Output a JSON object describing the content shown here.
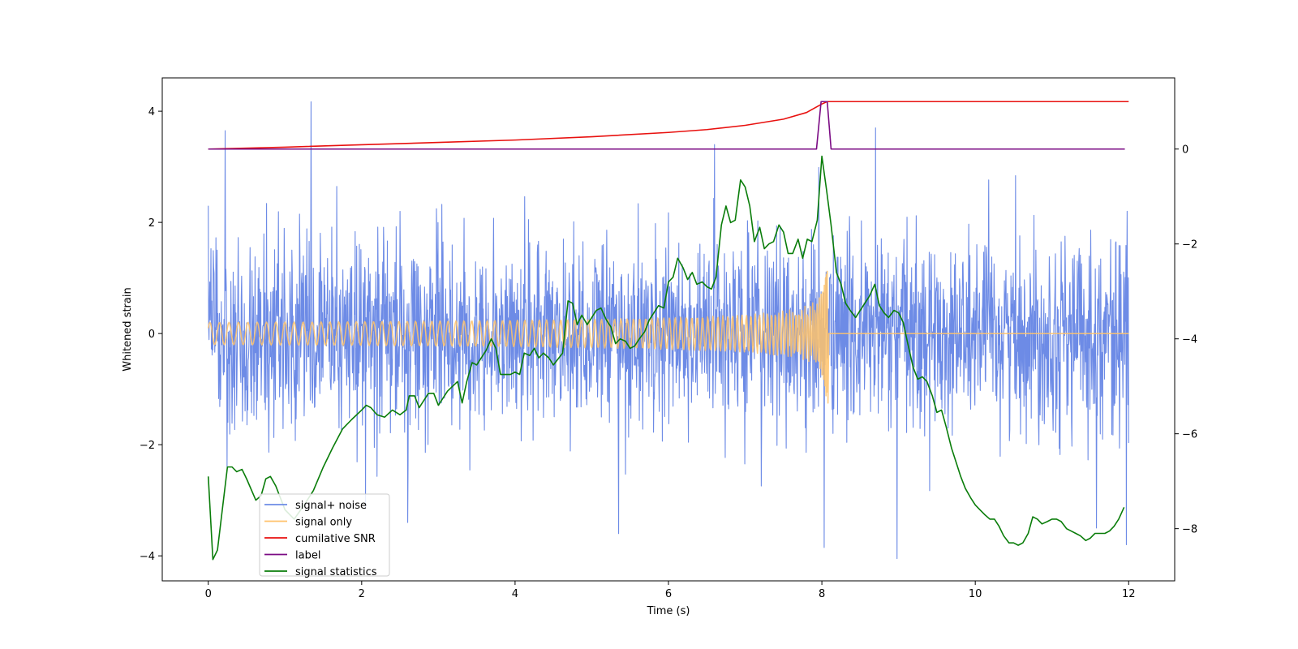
{
  "chart_data": {
    "type": "line",
    "xlabel": "Time (s)",
    "ylabel": "Whitened strain",
    "xlim": [
      -0.6,
      12.6
    ],
    "ylim": [
      -4.45,
      4.6
    ],
    "y2lim": [
      -9.1,
      1.5
    ],
    "grid": false,
    "legend_placement": "lower-left",
    "x_ticks": [
      0,
      2,
      4,
      6,
      8,
      10,
      12
    ],
    "y_ticks": [
      -4,
      -2,
      0,
      2,
      4
    ],
    "y2_ticks": [
      -8,
      -6,
      -4,
      -2,
      0
    ],
    "series": [
      {
        "name": "signal+ noise",
        "axis": "left",
        "color": "#6d8be6",
        "kind": "noise",
        "x_range": [
          0,
          12
        ],
        "std": 0.85,
        "samples": 2400,
        "spikes": [
          [
            0.0,
            2.3
          ],
          [
            0.22,
            3.65
          ],
          [
            1.34,
            4.17
          ],
          [
            2.05,
            -3.15
          ],
          [
            2.6,
            -3.4
          ],
          [
            5.35,
            -3.6
          ],
          [
            6.6,
            3.4
          ],
          [
            8.03,
            -3.85
          ],
          [
            8.7,
            3.7
          ],
          [
            8.98,
            -4.05
          ],
          [
            11.58,
            -3.5
          ],
          [
            11.97,
            -3.8
          ],
          [
            11.98,
            2.2
          ]
        ]
      },
      {
        "name": "signal only",
        "axis": "left",
        "color": "#ffc36b",
        "kind": "chirp",
        "x_range": [
          0,
          12
        ],
        "t_merge": 8.07,
        "peak": 1.12
      },
      {
        "name": "cumilative SNR",
        "axis": "right",
        "color": "#e8110f",
        "points": [
          [
            0,
            0.0
          ],
          [
            1,
            0.04
          ],
          [
            2,
            0.09
          ],
          [
            3,
            0.14
          ],
          [
            4,
            0.19
          ],
          [
            5,
            0.26
          ],
          [
            6,
            0.35
          ],
          [
            6.5,
            0.41
          ],
          [
            7,
            0.5
          ],
          [
            7.5,
            0.63
          ],
          [
            7.8,
            0.77
          ],
          [
            8.0,
            0.95
          ],
          [
            8.07,
            1.0
          ],
          [
            12,
            1.0
          ]
        ]
      },
      {
        "name": "label",
        "axis": "right",
        "color": "#7b0b84",
        "points": [
          [
            0,
            0.0
          ],
          [
            7.93,
            0.0
          ],
          [
            7.99,
            1.0
          ],
          [
            8.07,
            1.0
          ],
          [
            8.12,
            0.0
          ],
          [
            11.95,
            0.0
          ]
        ]
      },
      {
        "name": "signal statistics",
        "axis": "right",
        "color": "#0a7d0a",
        "points": [
          [
            0.0,
            -6.9
          ],
          [
            0.06,
            -8.65
          ],
          [
            0.12,
            -8.45
          ],
          [
            0.25,
            -6.7
          ],
          [
            0.31,
            -6.7
          ],
          [
            0.37,
            -6.8
          ],
          [
            0.44,
            -6.75
          ],
          [
            0.5,
            -6.95
          ],
          [
            0.62,
            -7.4
          ],
          [
            0.69,
            -7.3
          ],
          [
            0.75,
            -6.95
          ],
          [
            0.81,
            -6.9
          ],
          [
            0.88,
            -7.1
          ],
          [
            1.0,
            -7.6
          ],
          [
            1.12,
            -7.8
          ],
          [
            1.25,
            -7.5
          ],
          [
            1.37,
            -7.2
          ],
          [
            1.5,
            -6.7
          ],
          [
            1.62,
            -6.3
          ],
          [
            1.75,
            -5.9
          ],
          [
            1.87,
            -5.7
          ],
          [
            2.0,
            -5.5
          ],
          [
            2.06,
            -5.4
          ],
          [
            2.12,
            -5.45
          ],
          [
            2.2,
            -5.6
          ],
          [
            2.3,
            -5.65
          ],
          [
            2.4,
            -5.5
          ],
          [
            2.5,
            -5.6
          ],
          [
            2.58,
            -5.5
          ],
          [
            2.62,
            -5.2
          ],
          [
            2.69,
            -5.2
          ],
          [
            2.75,
            -5.45
          ],
          [
            2.81,
            -5.3
          ],
          [
            2.87,
            -5.15
          ],
          [
            2.94,
            -5.15
          ],
          [
            3.0,
            -5.4
          ],
          [
            3.12,
            -5.1
          ],
          [
            3.25,
            -4.9
          ],
          [
            3.31,
            -5.35
          ],
          [
            3.37,
            -4.9
          ],
          [
            3.44,
            -4.5
          ],
          [
            3.5,
            -4.55
          ],
          [
            3.62,
            -4.25
          ],
          [
            3.69,
            -4.0
          ],
          [
            3.75,
            -4.2
          ],
          [
            3.81,
            -4.75
          ],
          [
            3.94,
            -4.75
          ],
          [
            4.0,
            -4.7
          ],
          [
            4.06,
            -4.75
          ],
          [
            4.12,
            -4.3
          ],
          [
            4.19,
            -4.35
          ],
          [
            4.25,
            -4.2
          ],
          [
            4.31,
            -4.4
          ],
          [
            4.37,
            -4.3
          ],
          [
            4.44,
            -4.4
          ],
          [
            4.5,
            -4.55
          ],
          [
            4.62,
            -4.3
          ],
          [
            4.69,
            -3.2
          ],
          [
            4.75,
            -3.25
          ],
          [
            4.81,
            -3.7
          ],
          [
            4.87,
            -3.5
          ],
          [
            4.94,
            -3.7
          ],
          [
            5.0,
            -3.55
          ],
          [
            5.06,
            -3.4
          ],
          [
            5.12,
            -3.35
          ],
          [
            5.19,
            -3.6
          ],
          [
            5.25,
            -3.75
          ],
          [
            5.31,
            -4.1
          ],
          [
            5.37,
            -4.0
          ],
          [
            5.44,
            -4.05
          ],
          [
            5.5,
            -4.2
          ],
          [
            5.56,
            -4.15
          ],
          [
            5.62,
            -4.0
          ],
          [
            5.69,
            -3.85
          ],
          [
            5.75,
            -3.6
          ],
          [
            5.81,
            -3.45
          ],
          [
            5.87,
            -3.3
          ],
          [
            5.94,
            -3.35
          ],
          [
            6.0,
            -2.8
          ],
          [
            6.06,
            -2.7
          ],
          [
            6.12,
            -2.3
          ],
          [
            6.19,
            -2.5
          ],
          [
            6.25,
            -2.75
          ],
          [
            6.31,
            -2.6
          ],
          [
            6.37,
            -2.85
          ],
          [
            6.44,
            -2.8
          ],
          [
            6.5,
            -2.9
          ],
          [
            6.56,
            -2.95
          ],
          [
            6.62,
            -2.7
          ],
          [
            6.69,
            -1.6
          ],
          [
            6.75,
            -1.2
          ],
          [
            6.81,
            -1.55
          ],
          [
            6.87,
            -1.5
          ],
          [
            6.94,
            -0.65
          ],
          [
            7.0,
            -0.8
          ],
          [
            7.06,
            -1.2
          ],
          [
            7.12,
            -1.95
          ],
          [
            7.19,
            -1.65
          ],
          [
            7.25,
            -2.1
          ],
          [
            7.31,
            -2.0
          ],
          [
            7.37,
            -1.95
          ],
          [
            7.44,
            -1.6
          ],
          [
            7.5,
            -1.75
          ],
          [
            7.56,
            -2.2
          ],
          [
            7.62,
            -2.2
          ],
          [
            7.69,
            -1.9
          ],
          [
            7.75,
            -2.3
          ],
          [
            7.81,
            -1.9
          ],
          [
            7.87,
            -1.95
          ],
          [
            7.94,
            -1.5
          ],
          [
            8.0,
            -0.15
          ],
          [
            8.06,
            -0.85
          ],
          [
            8.12,
            -1.6
          ],
          [
            8.19,
            -2.6
          ],
          [
            8.25,
            -2.85
          ],
          [
            8.31,
            -3.25
          ],
          [
            8.37,
            -3.4
          ],
          [
            8.44,
            -3.55
          ],
          [
            8.5,
            -3.4
          ],
          [
            8.56,
            -3.25
          ],
          [
            8.62,
            -3.1
          ],
          [
            8.69,
            -2.85
          ],
          [
            8.75,
            -3.3
          ],
          [
            8.81,
            -3.45
          ],
          [
            8.87,
            -3.55
          ],
          [
            8.94,
            -3.4
          ],
          [
            9.0,
            -3.45
          ],
          [
            9.06,
            -3.65
          ],
          [
            9.12,
            -4.1
          ],
          [
            9.19,
            -4.6
          ],
          [
            9.25,
            -4.85
          ],
          [
            9.31,
            -4.8
          ],
          [
            9.37,
            -4.9
          ],
          [
            9.44,
            -5.2
          ],
          [
            9.5,
            -5.55
          ],
          [
            9.56,
            -5.5
          ],
          [
            9.62,
            -5.85
          ],
          [
            9.69,
            -6.3
          ],
          [
            9.75,
            -6.6
          ],
          [
            9.81,
            -6.9
          ],
          [
            9.87,
            -7.15
          ],
          [
            9.94,
            -7.35
          ],
          [
            10.0,
            -7.5
          ],
          [
            10.06,
            -7.6
          ],
          [
            10.12,
            -7.7
          ],
          [
            10.19,
            -7.8
          ],
          [
            10.25,
            -7.8
          ],
          [
            10.31,
            -7.95
          ],
          [
            10.37,
            -8.15
          ],
          [
            10.44,
            -8.3
          ],
          [
            10.5,
            -8.3
          ],
          [
            10.56,
            -8.35
          ],
          [
            10.62,
            -8.3
          ],
          [
            10.69,
            -8.1
          ],
          [
            10.75,
            -7.75
          ],
          [
            10.81,
            -7.8
          ],
          [
            10.87,
            -7.9
          ],
          [
            10.94,
            -7.85
          ],
          [
            11.0,
            -7.8
          ],
          [
            11.06,
            -7.8
          ],
          [
            11.12,
            -7.85
          ],
          [
            11.19,
            -8.0
          ],
          [
            11.25,
            -8.05
          ],
          [
            11.31,
            -8.1
          ],
          [
            11.37,
            -8.15
          ],
          [
            11.44,
            -8.25
          ],
          [
            11.5,
            -8.2
          ],
          [
            11.56,
            -8.1
          ],
          [
            11.62,
            -8.1
          ],
          [
            11.69,
            -8.1
          ],
          [
            11.75,
            -8.05
          ],
          [
            11.81,
            -7.95
          ],
          [
            11.87,
            -7.8
          ],
          [
            11.94,
            -7.55
          ]
        ]
      }
    ]
  }
}
